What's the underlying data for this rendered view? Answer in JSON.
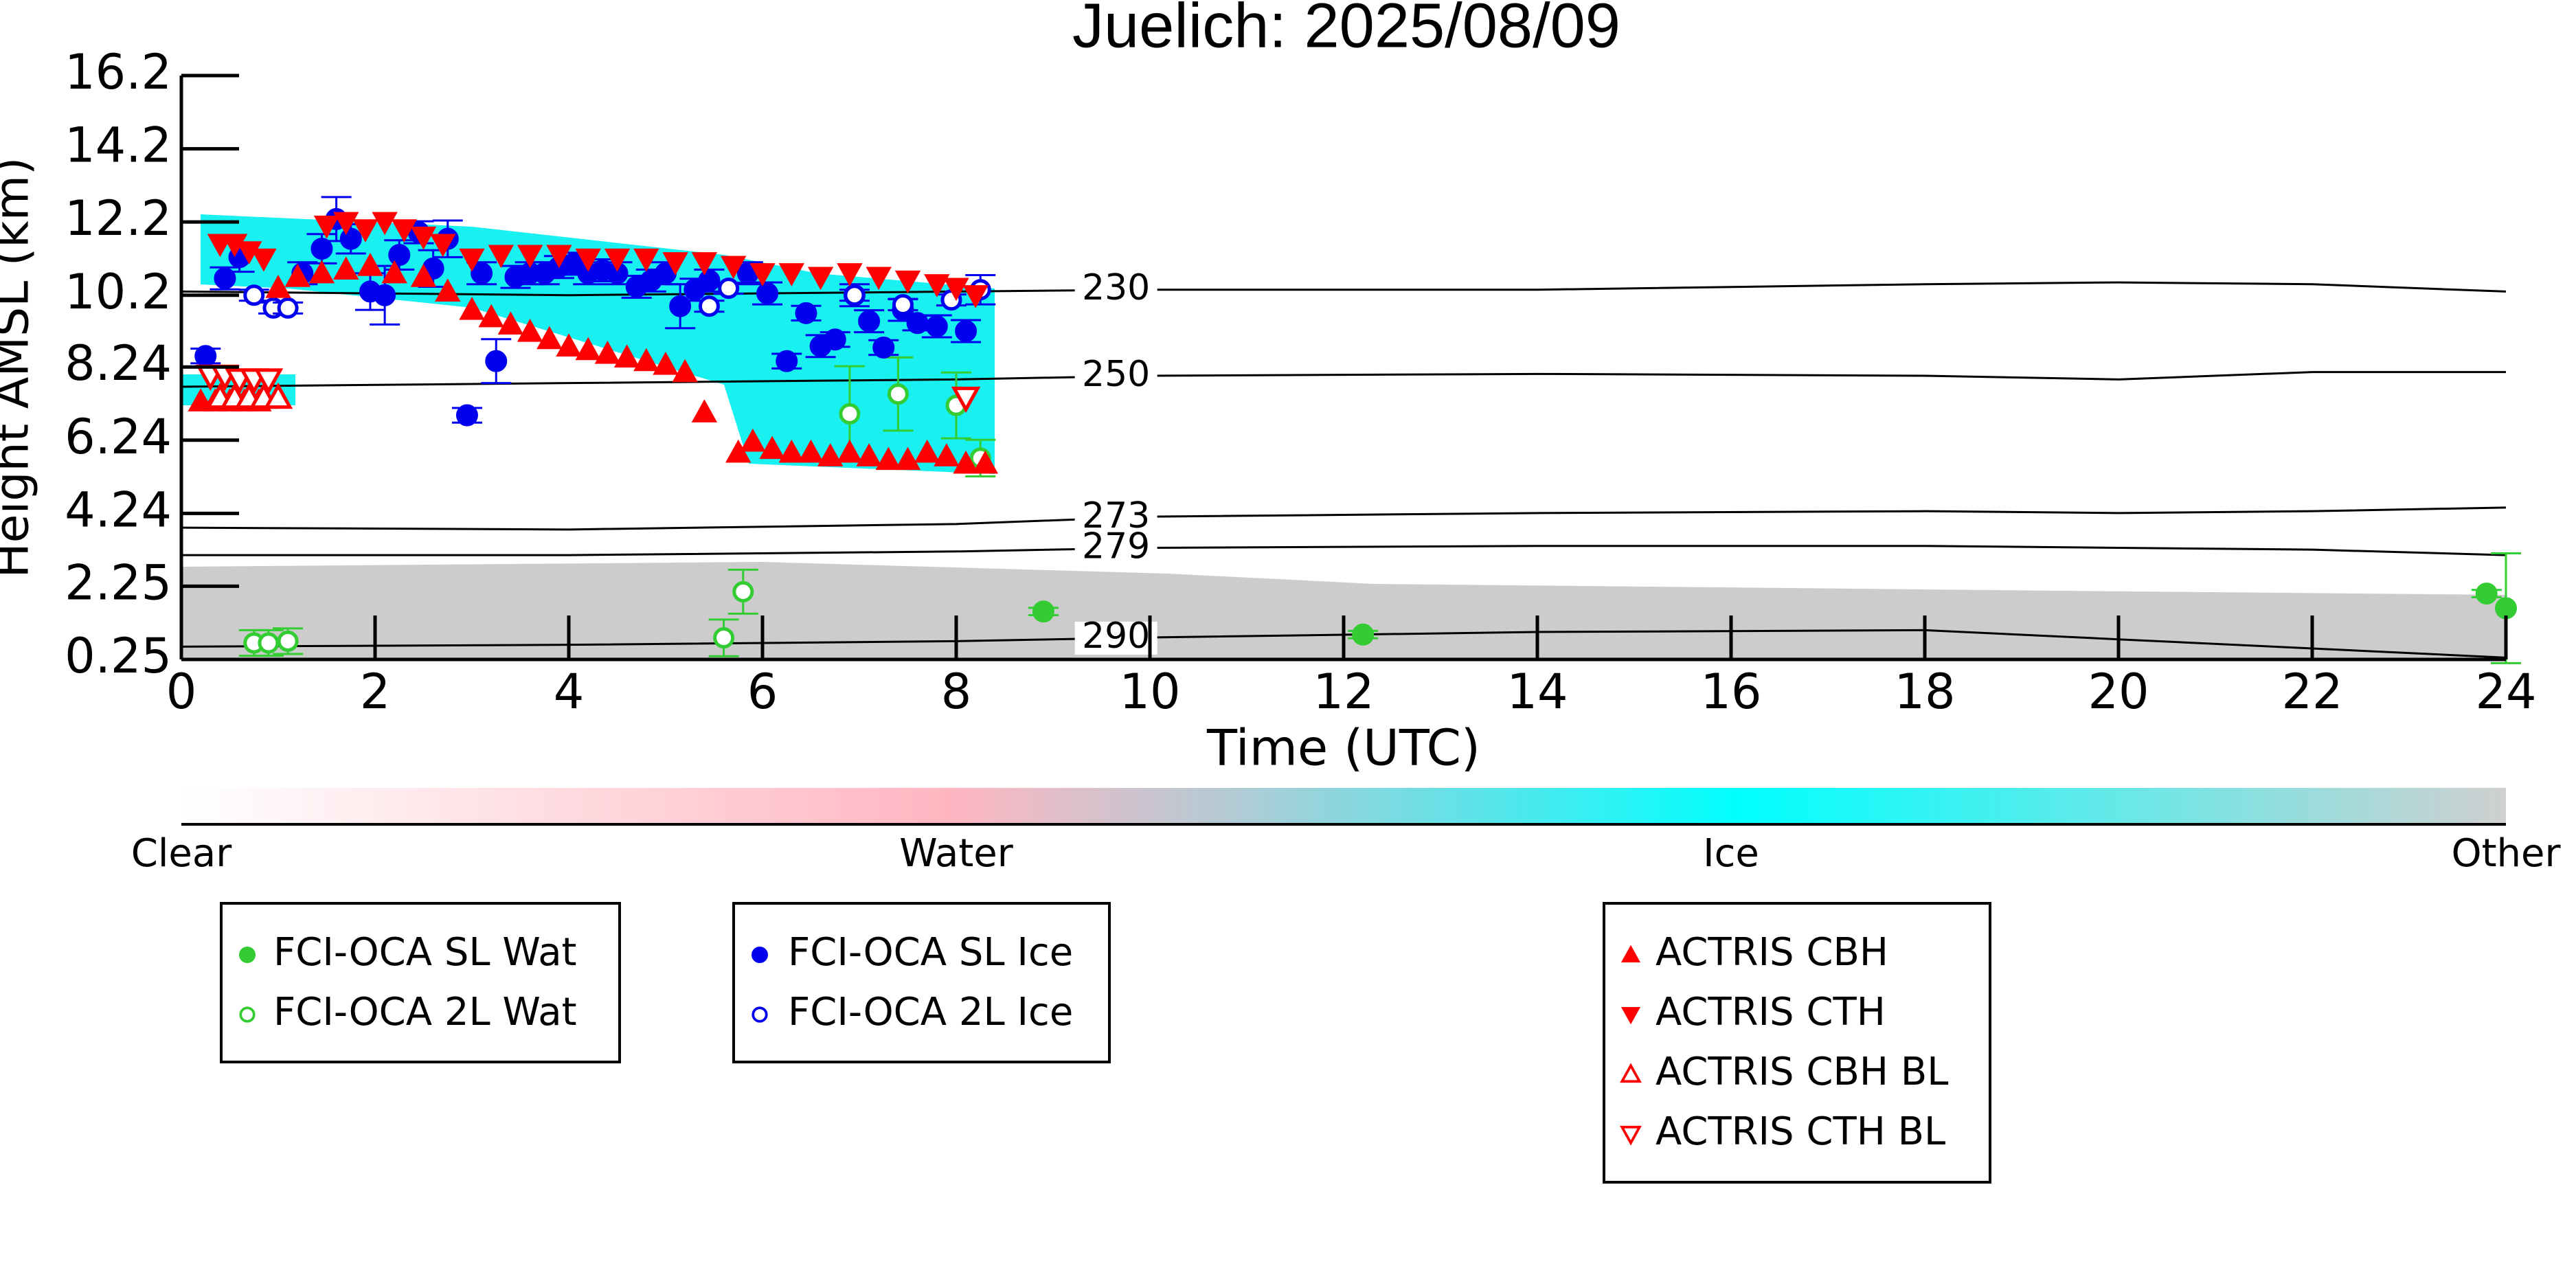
{
  "chart_data": {
    "type": "scatter",
    "title": "Juelich: 2025/08/09",
    "xlabel": "Time (UTC)",
    "ylabel": "Height AMSL (km)",
    "xlim": [
      0,
      24
    ],
    "xticks": [
      0,
      2,
      4,
      6,
      8,
      10,
      12,
      14,
      16,
      18,
      20,
      22,
      24
    ],
    "ylim": [
      0.25,
      16.2
    ],
    "yticks": [
      0.25,
      2.25,
      4.24,
      6.24,
      8.24,
      10.2,
      12.2,
      14.2,
      16.2
    ],
    "series": [
      {
        "name": "FCI-OCA SL Wat",
        "color": "#33cc33",
        "marker": "circle",
        "filled": true,
        "group": 0,
        "x": [
          8.9,
          12.2,
          23.8,
          24
        ],
        "values": [
          1.56,
          0.93,
          2.05,
          1.65
        ],
        "errors": [
          0.1,
          0.1,
          0.1,
          1.5
        ]
      },
      {
        "name": "FCI-OCA 2L Wat",
        "color": "#33cc33",
        "marker": "circle",
        "filled": false,
        "group": 0,
        "x": [
          0.75,
          0.9,
          1.1,
          5.6,
          5.8,
          6.9,
          7.4,
          8.0,
          8.25
        ],
        "values": [
          0.7,
          0.7,
          0.75,
          0.84,
          2.1,
          6.96,
          7.5,
          7.19,
          5.75
        ],
        "errors": [
          0.35,
          0.35,
          0.35,
          0.5,
          0.6,
          1.3,
          1.0,
          0.9,
          0.5
        ]
      },
      {
        "name": "FCI-OCA SL Ice",
        "color": "#0000ee",
        "marker": "circle",
        "filled": true,
        "group": 1,
        "x": [
          0.25,
          0.45,
          0.6,
          1.25,
          1.45,
          1.6,
          1.75,
          1.95,
          2.1,
          2.25,
          2.45,
          2.6,
          2.75,
          2.95,
          3.1,
          3.25,
          3.45,
          3.6,
          3.75,
          3.9,
          4.05,
          4.2,
          4.35,
          4.5,
          4.7,
          4.85,
          5.0,
          5.15,
          5.3,
          5.45,
          5.85,
          6.05,
          6.25,
          6.45,
          6.6,
          6.75,
          6.95,
          7.1,
          7.25,
          7.45,
          7.6,
          7.8,
          8.1
        ],
        "values": [
          8.54,
          10.66,
          11.24,
          10.8,
          11.47,
          12.28,
          11.74,
          10.3,
          10.2,
          11.3,
          11.92,
          10.93,
          11.74,
          6.92,
          10.8,
          8.4,
          10.7,
          10.8,
          10.8,
          10.97,
          11.06,
          10.8,
          10.88,
          10.8,
          10.43,
          10.6,
          10.8,
          9.9,
          10.35,
          10.6,
          10.8,
          10.25,
          8.4,
          9.71,
          8.81,
          8.99,
          10.2,
          9.49,
          8.77,
          9.8,
          9.44,
          9.35,
          9.22
        ],
        "errors": [
          0.2,
          0.3,
          0.4,
          0.3,
          0.4,
          0.6,
          0.4,
          0.5,
          0.8,
          0.4,
          0.3,
          0.5,
          0.5,
          0.2,
          0.3,
          0.6,
          0.3,
          0.3,
          0.3,
          0.3,
          0.3,
          0.3,
          0.3,
          0.3,
          0.3,
          0.3,
          0.3,
          0.6,
          0.3,
          0.3,
          0.3,
          0.3,
          0.2,
          0.2,
          0.3,
          0.2,
          0.3,
          0.3,
          0.2,
          0.3,
          0.2,
          0.3,
          0.3
        ]
      },
      {
        "name": "FCI-OCA 2L Ice",
        "color": "#0000ee",
        "marker": "circle",
        "filled": false,
        "group": 1,
        "x": [
          0.75,
          0.95,
          1.1,
          5.45,
          5.65,
          6.95,
          7.45,
          7.95,
          8.25
        ],
        "values": [
          10.2,
          9.85,
          9.85,
          9.9,
          10.39,
          10.2,
          9.94,
          10.07,
          10.35
        ],
        "errors": [
          0.15,
          0.15,
          0.15,
          0.15,
          0.15,
          0.15,
          0.15,
          0.15,
          0.4
        ]
      },
      {
        "name": "ACTRIS CBH",
        "color": "#ff0000",
        "marker": "triangle-up",
        "filled": true,
        "group": 2,
        "x": [
          0.2,
          0.35,
          0.5,
          0.65,
          0.8,
          1.0,
          1.2,
          1.45,
          1.7,
          1.95,
          2.2,
          2.5,
          2.75,
          3.0,
          3.2,
          3.4,
          3.6,
          3.8,
          4.0,
          4.2,
          4.4,
          4.6,
          4.8,
          5.0,
          5.2,
          5.4,
          5.75,
          5.9,
          6.1,
          6.3,
          6.5,
          6.7,
          6.9,
          7.1,
          7.3,
          7.5,
          7.7,
          7.9,
          8.1,
          8.3
        ],
        "values": [
          7.3,
          7.3,
          7.3,
          7.3,
          7.3,
          10.4,
          10.7,
          10.8,
          10.9,
          11.0,
          10.8,
          10.7,
          10.3,
          9.8,
          9.6,
          9.4,
          9.2,
          9.0,
          8.8,
          8.7,
          8.6,
          8.5,
          8.4,
          8.3,
          8.1,
          7.0,
          5.9,
          6.2,
          6.0,
          5.9,
          5.9,
          5.8,
          5.9,
          5.8,
          5.7,
          5.7,
          5.9,
          5.8,
          5.6,
          5.6
        ]
      },
      {
        "name": "ACTRIS CTH",
        "color": "#ff0000",
        "marker": "triangle-down",
        "filled": true,
        "group": 2,
        "x": [
          0.4,
          0.55,
          0.7,
          0.85,
          1.5,
          1.7,
          1.9,
          2.1,
          2.3,
          2.5,
          2.7,
          3.0,
          3.3,
          3.6,
          3.9,
          4.2,
          4.5,
          4.8,
          5.1,
          5.4,
          5.7,
          6.0,
          6.3,
          6.6,
          6.9,
          7.2,
          7.5,
          7.8,
          8.0,
          8.2
        ],
        "values": [
          11.6,
          11.6,
          11.4,
          11.2,
          12.1,
          12.2,
          12.0,
          12.2,
          12.0,
          11.8,
          11.6,
          11.2,
          11.3,
          11.3,
          11.3,
          11.2,
          11.2,
          11.2,
          11.1,
          11.1,
          11.0,
          10.8,
          10.8,
          10.7,
          10.8,
          10.7,
          10.6,
          10.5,
          10.4,
          10.2
        ]
      },
      {
        "name": "ACTRIS CBH BL",
        "color": "#ff0000",
        "marker": "triangle-up",
        "filled": false,
        "group": 2,
        "x": [
          0.4,
          0.55,
          0.7,
          0.85,
          1.0
        ],
        "values": [
          7.4,
          7.4,
          7.4,
          7.4,
          7.4
        ]
      },
      {
        "name": "ACTRIS CTH BL",
        "color": "#ff0000",
        "marker": "triangle-down",
        "filled": false,
        "group": 2,
        "x": [
          0.3,
          0.45,
          0.6,
          0.75,
          0.9,
          8.1
        ],
        "values": [
          8.0,
          8.0,
          7.9,
          7.9,
          7.9,
          7.4
        ]
      }
    ],
    "contours": [
      {
        "label": 230,
        "x": [
          0,
          4,
          8,
          10,
          14,
          18,
          20,
          22,
          24
        ],
        "values": [
          10.3,
          10.2,
          10.3,
          10.35,
          10.35,
          10.5,
          10.55,
          10.5,
          10.3
        ]
      },
      {
        "label": 250,
        "x": [
          0,
          4,
          8,
          10,
          14,
          18,
          20,
          22,
          24
        ],
        "values": [
          7.7,
          7.8,
          7.9,
          8.0,
          8.05,
          8.0,
          7.9,
          8.1,
          8.1
        ]
      },
      {
        "label": 273,
        "x": [
          0,
          4,
          8,
          10,
          14,
          18,
          20,
          22,
          24
        ],
        "values": [
          3.85,
          3.8,
          3.95,
          4.15,
          4.25,
          4.3,
          4.25,
          4.3,
          4.4
        ]
      },
      {
        "label": 279,
        "x": [
          0,
          4,
          8,
          10,
          14,
          18,
          20,
          22,
          24
        ],
        "values": [
          3.1,
          3.1,
          3.2,
          3.3,
          3.35,
          3.35,
          3.3,
          3.25,
          3.1
        ]
      },
      {
        "label": 290,
        "x": [
          0,
          4,
          8,
          10,
          14,
          18,
          20,
          22,
          24
        ],
        "values": [
          0.6,
          0.65,
          0.75,
          0.85,
          1.0,
          1.05,
          0.8,
          0.55,
          0.3
        ]
      }
    ],
    "colorbar": {
      "labels": [
        "Clear",
        "Water",
        "Ice",
        "Other"
      ]
    }
  }
}
